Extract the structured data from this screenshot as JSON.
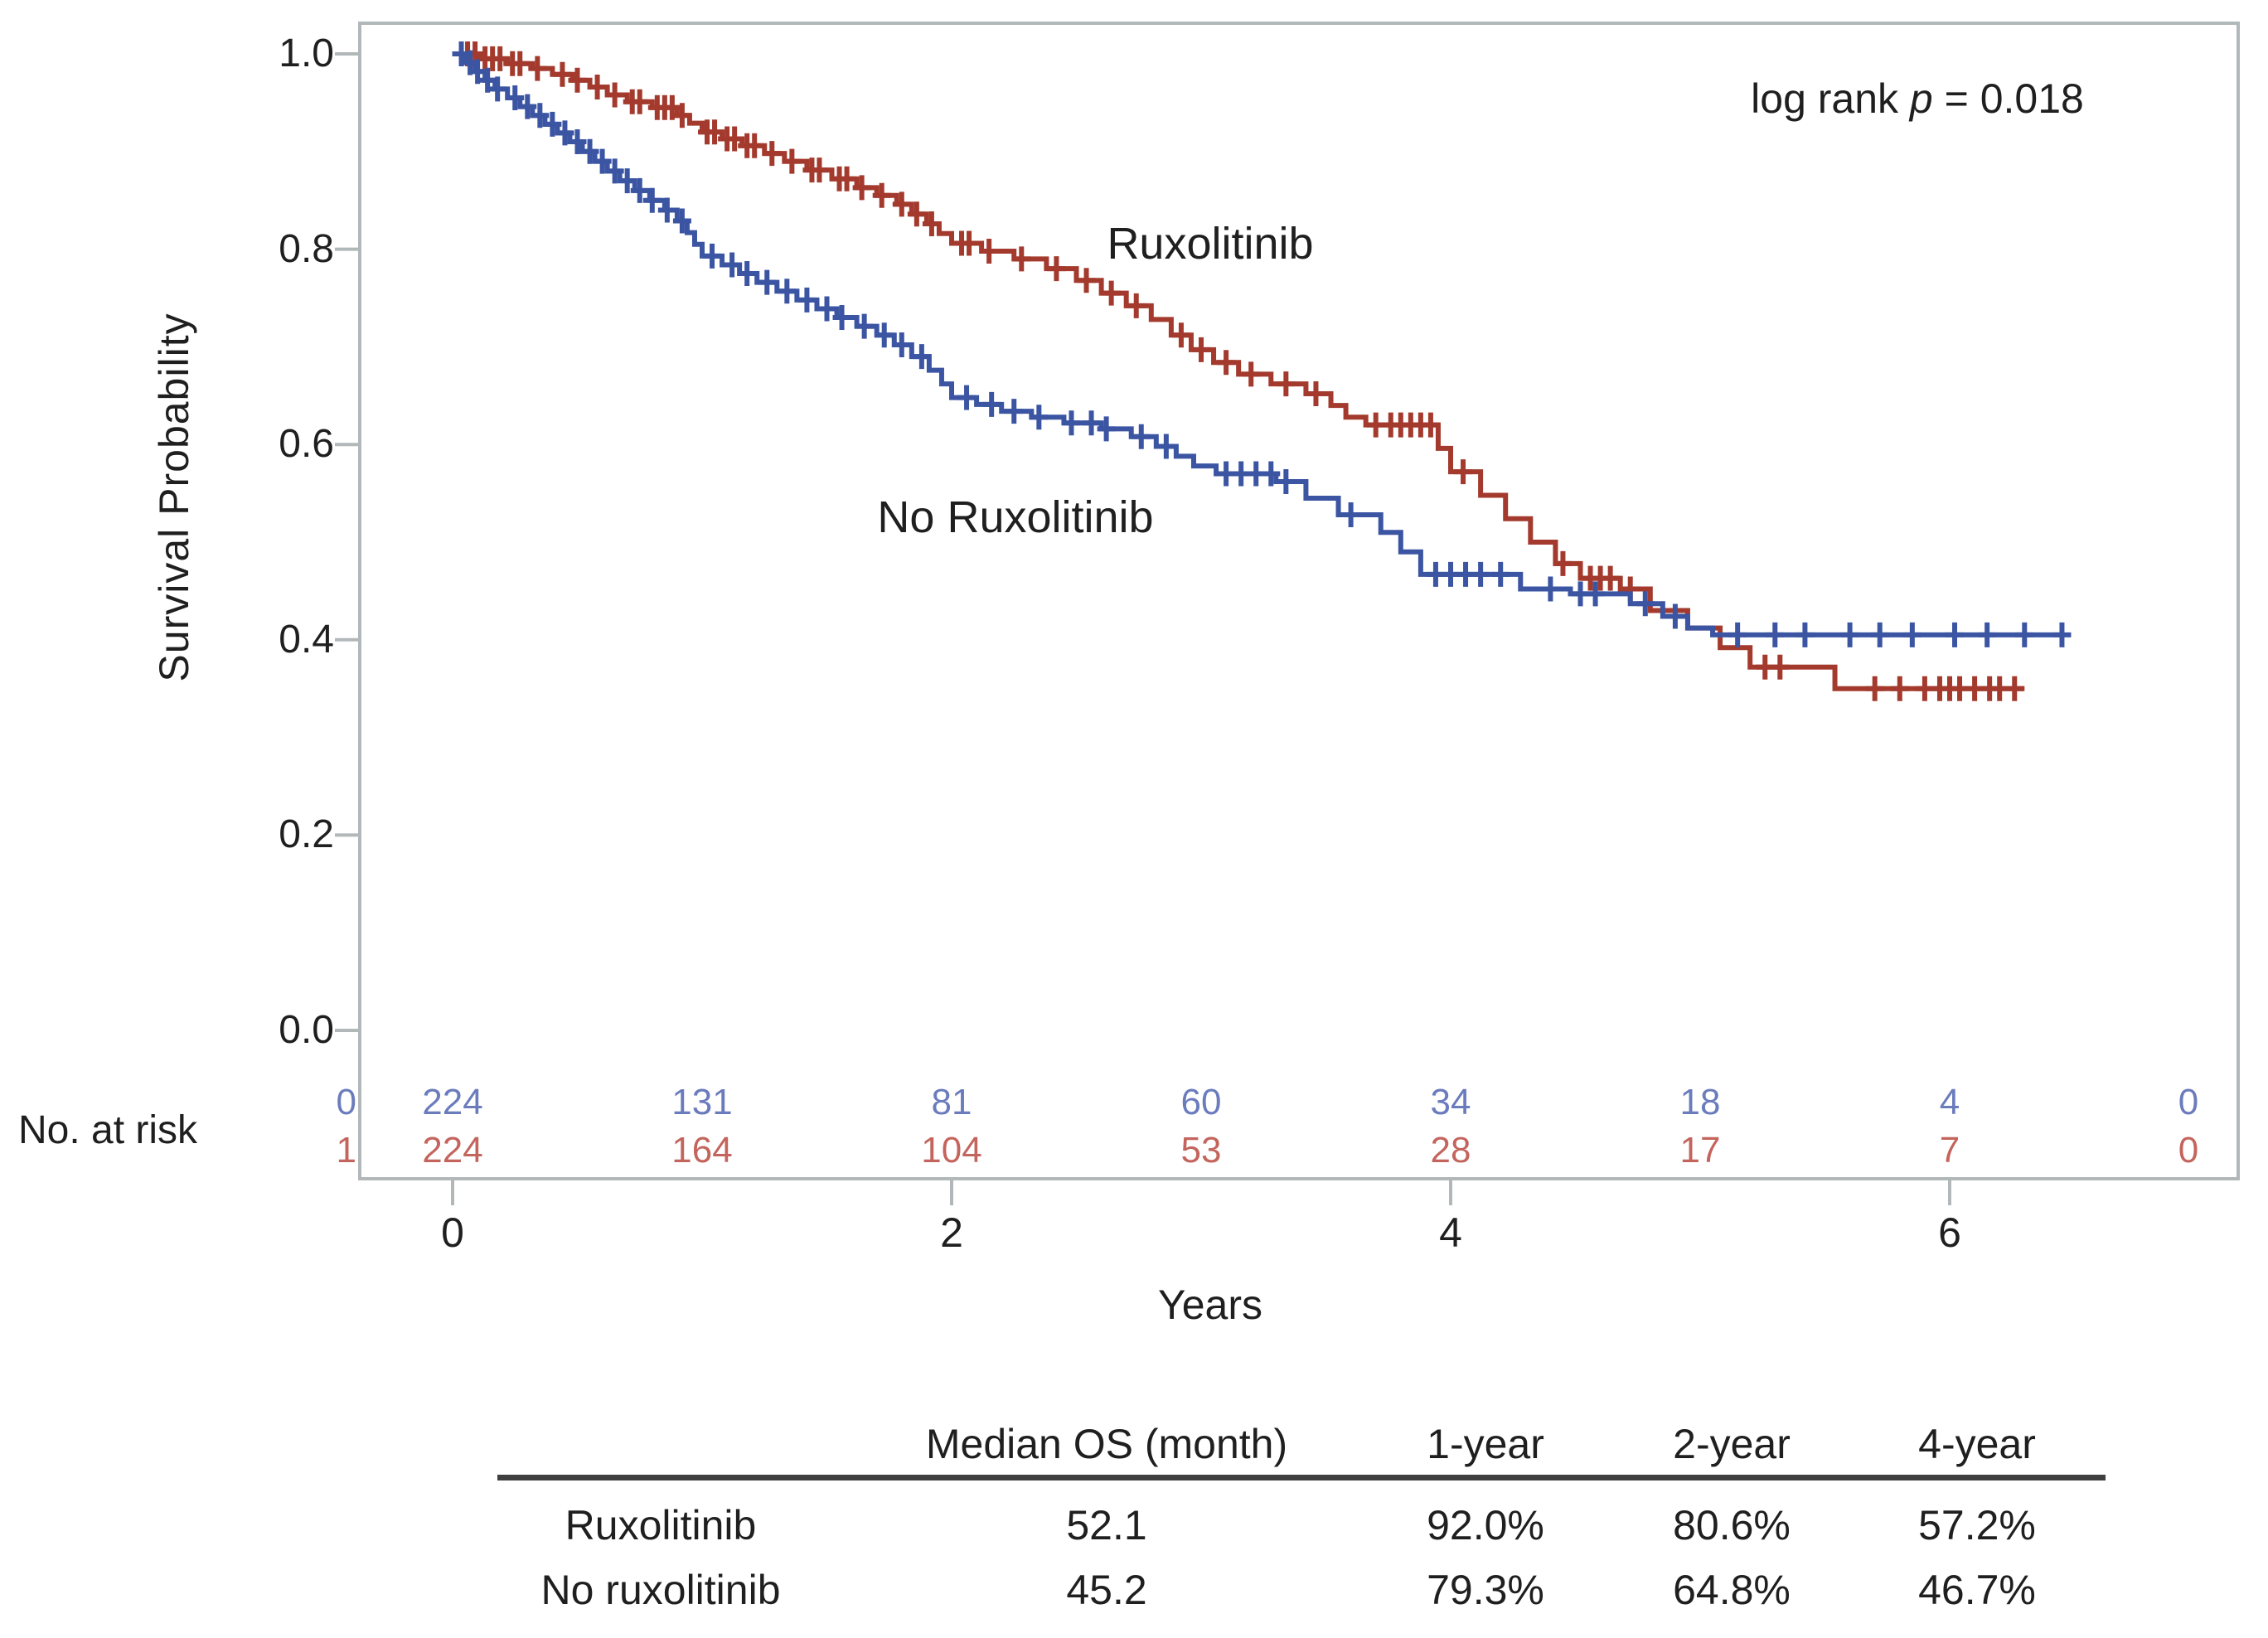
{
  "chart_data": {
    "type": "line",
    "subtype": "kaplan-meier-step",
    "title": "",
    "xlabel": "Years",
    "ylabel": "Survival Probability",
    "grid": false,
    "legend_position": "inline-labels",
    "xlim": [
      -0.37,
      7.16
    ],
    "ylim": [
      -0.15,
      1.03
    ],
    "xticks": [
      0,
      2,
      4,
      6
    ],
    "xtick_labels": [
      "0",
      "2",
      "4",
      "6"
    ],
    "yticks": [
      1.0,
      0.8,
      0.6,
      0.4,
      0.2,
      0.0
    ],
    "ytick_labels": [
      "1.0",
      "0.8",
      "0.6",
      "0.4",
      "0.2",
      "0.0"
    ],
    "annotation": {
      "prefix": "log rank ",
      "variable": "p",
      "suffix": " = 0.018"
    },
    "series": [
      {
        "name": "Ruxolitinib",
        "color": "#a33a2d",
        "end_time": 6.3,
        "steps": [
          [
            0,
            1.0
          ],
          [
            0.1,
            0.995
          ],
          [
            0.22,
            0.99
          ],
          [
            0.32,
            0.985
          ],
          [
            0.4,
            0.979
          ],
          [
            0.48,
            0.973
          ],
          [
            0.55,
            0.966
          ],
          [
            0.62,
            0.958
          ],
          [
            0.7,
            0.951
          ],
          [
            0.8,
            0.945
          ],
          [
            0.9,
            0.937
          ],
          [
            0.95,
            0.929
          ],
          [
            1.0,
            0.92
          ],
          [
            1.08,
            0.913
          ],
          [
            1.16,
            0.906
          ],
          [
            1.25,
            0.898
          ],
          [
            1.33,
            0.89
          ],
          [
            1.42,
            0.881
          ],
          [
            1.52,
            0.872
          ],
          [
            1.62,
            0.863
          ],
          [
            1.7,
            0.855
          ],
          [
            1.78,
            0.846
          ],
          [
            1.84,
            0.836
          ],
          [
            1.9,
            0.826
          ],
          [
            1.95,
            0.816
          ],
          [
            2.0,
            0.806
          ],
          [
            2.12,
            0.798
          ],
          [
            2.25,
            0.79
          ],
          [
            2.38,
            0.78
          ],
          [
            2.5,
            0.768
          ],
          [
            2.6,
            0.755
          ],
          [
            2.7,
            0.742
          ],
          [
            2.8,
            0.728
          ],
          [
            2.88,
            0.712
          ],
          [
            2.96,
            0.697
          ],
          [
            3.05,
            0.684
          ],
          [
            3.15,
            0.672
          ],
          [
            3.28,
            0.662
          ],
          [
            3.42,
            0.652
          ],
          [
            3.52,
            0.64
          ],
          [
            3.58,
            0.628
          ],
          [
            3.66,
            0.62
          ],
          [
            3.95,
            0.596
          ],
          [
            4.0,
            0.572
          ],
          [
            4.12,
            0.548
          ],
          [
            4.22,
            0.524
          ],
          [
            4.32,
            0.5
          ],
          [
            4.42,
            0.478
          ],
          [
            4.52,
            0.463
          ],
          [
            4.68,
            0.452
          ],
          [
            4.8,
            0.43
          ],
          [
            4.95,
            0.412
          ],
          [
            5.08,
            0.392
          ],
          [
            5.2,
            0.372
          ],
          [
            5.54,
            0.35
          ]
        ],
        "censor_times": [
          0.06,
          0.09,
          0.13,
          0.16,
          0.19,
          0.24,
          0.27,
          0.34,
          0.44,
          0.5,
          0.58,
          0.65,
          0.72,
          0.75,
          0.82,
          0.85,
          0.88,
          0.92,
          1.02,
          1.05,
          1.1,
          1.13,
          1.18,
          1.21,
          1.28,
          1.36,
          1.44,
          1.47,
          1.55,
          1.58,
          1.64,
          1.72,
          1.8,
          1.86,
          1.92,
          2.04,
          2.07,
          2.15,
          2.28,
          2.42,
          2.54,
          2.64,
          2.74,
          2.92,
          3.0,
          3.1,
          3.2,
          3.34,
          3.46,
          3.7,
          3.76,
          3.8,
          3.84,
          3.88,
          3.92,
          4.05,
          4.45,
          4.56,
          4.6,
          4.64,
          4.72,
          5.26,
          5.32,
          5.7,
          5.8,
          5.9,
          5.96,
          6.0,
          6.04,
          6.1,
          6.16,
          6.2,
          6.26
        ]
      },
      {
        "name": "No Ruxolitinib",
        "color": "#3b55a3",
        "end_time": 6.45,
        "steps": [
          [
            0,
            1.0
          ],
          [
            0.05,
            0.991
          ],
          [
            0.09,
            0.982
          ],
          [
            0.13,
            0.973
          ],
          [
            0.17,
            0.964
          ],
          [
            0.22,
            0.955
          ],
          [
            0.27,
            0.946
          ],
          [
            0.32,
            0.937
          ],
          [
            0.37,
            0.928
          ],
          [
            0.42,
            0.919
          ],
          [
            0.47,
            0.91
          ],
          [
            0.52,
            0.9
          ],
          [
            0.57,
            0.89
          ],
          [
            0.62,
            0.88
          ],
          [
            0.67,
            0.87
          ],
          [
            0.73,
            0.86
          ],
          [
            0.79,
            0.85
          ],
          [
            0.85,
            0.84
          ],
          [
            0.9,
            0.829
          ],
          [
            0.94,
            0.817
          ],
          [
            0.97,
            0.805
          ],
          [
            1.0,
            0.793
          ],
          [
            1.08,
            0.784
          ],
          [
            1.15,
            0.775
          ],
          [
            1.22,
            0.766
          ],
          [
            1.3,
            0.757
          ],
          [
            1.38,
            0.748
          ],
          [
            1.46,
            0.739
          ],
          [
            1.54,
            0.73
          ],
          [
            1.62,
            0.721
          ],
          [
            1.7,
            0.712
          ],
          [
            1.77,
            0.702
          ],
          [
            1.84,
            0.69
          ],
          [
            1.91,
            0.676
          ],
          [
            1.96,
            0.662
          ],
          [
            2.0,
            0.648
          ],
          [
            2.1,
            0.641
          ],
          [
            2.2,
            0.634
          ],
          [
            2.32,
            0.628
          ],
          [
            2.45,
            0.622
          ],
          [
            2.6,
            0.616
          ],
          [
            2.72,
            0.608
          ],
          [
            2.82,
            0.598
          ],
          [
            2.9,
            0.588
          ],
          [
            2.97,
            0.578
          ],
          [
            3.06,
            0.57
          ],
          [
            3.3,
            0.562
          ],
          [
            3.42,
            0.545
          ],
          [
            3.55,
            0.528
          ],
          [
            3.72,
            0.51
          ],
          [
            3.8,
            0.49
          ],
          [
            3.88,
            0.467
          ],
          [
            4.28,
            0.452
          ],
          [
            4.48,
            0.447
          ],
          [
            4.72,
            0.437
          ],
          [
            4.85,
            0.424
          ],
          [
            4.95,
            0.412
          ],
          [
            5.05,
            0.405
          ]
        ],
        "censor_times": [
          0.035,
          0.07,
          0.1,
          0.14,
          0.18,
          0.25,
          0.3,
          0.35,
          0.4,
          0.45,
          0.5,
          0.55,
          0.6,
          0.65,
          0.7,
          0.75,
          0.8,
          0.86,
          0.92,
          1.04,
          1.12,
          1.18,
          1.26,
          1.34,
          1.42,
          1.5,
          1.56,
          1.65,
          1.73,
          1.8,
          1.88,
          2.06,
          2.16,
          2.25,
          2.35,
          2.48,
          2.56,
          2.62,
          2.76,
          2.86,
          3.1,
          3.16,
          3.22,
          3.28,
          3.34,
          3.6,
          3.94,
          4.0,
          4.06,
          4.12,
          4.2,
          4.4,
          4.52,
          4.58,
          4.78,
          4.9,
          5.15,
          5.3,
          5.42,
          5.6,
          5.72,
          5.85,
          6.02,
          6.15,
          6.3,
          6.45
        ]
      }
    ]
  },
  "at_risk": {
    "label": "No. at risk",
    "times": [
      0,
      1,
      2,
      3,
      4,
      5,
      6,
      7
    ],
    "rows": [
      {
        "group": "0",
        "counts": [
          "224",
          "131",
          "81",
          "60",
          "34",
          "18",
          "4",
          "0"
        ]
      },
      {
        "group": "1",
        "counts": [
          "224",
          "164",
          "104",
          "53",
          "28",
          "17",
          "7",
          "0"
        ]
      }
    ]
  },
  "summary_table": {
    "col_headers": [
      "Median OS (month)",
      "1-year",
      "2-year",
      "4-year"
    ],
    "rows": [
      {
        "label": "Ruxolitinib",
        "median_os": "52.1",
        "y1": "92.0%",
        "y2": "80.6%",
        "y4": "57.2%"
      },
      {
        "label": "No ruxolitinib",
        "median_os": "45.2",
        "y1": "79.3%",
        "y2": "64.8%",
        "y4": "46.7%"
      }
    ]
  },
  "colors": {
    "ruxolitinib": "#a33a2d",
    "no_ruxolitinib": "#3b55a3",
    "axis": "#b2b8ba",
    "text": "#1f1f1f",
    "at_risk_blue": "#6b7cbd",
    "at_risk_red": "#c4655d",
    "table_rule": "#3f3f3f"
  }
}
